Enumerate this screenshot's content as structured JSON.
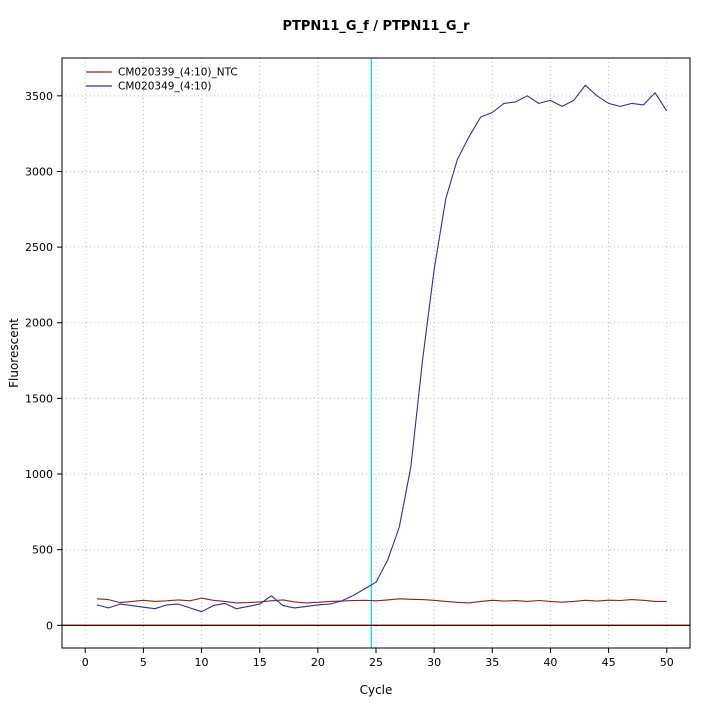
{
  "chart_data": {
    "type": "line",
    "title": "PTPN11_G_f / PTPN11_G_r",
    "xlabel": "Cycle",
    "ylabel": "Fluorescent",
    "x": [
      1,
      2,
      3,
      4,
      5,
      6,
      7,
      8,
      9,
      10,
      11,
      12,
      13,
      14,
      15,
      16,
      17,
      18,
      19,
      20,
      21,
      22,
      23,
      24,
      25,
      26,
      27,
      28,
      29,
      30,
      31,
      32,
      33,
      34,
      35,
      36,
      37,
      38,
      39,
      40,
      41,
      42,
      43,
      44,
      45,
      46,
      47,
      48,
      49,
      50
    ],
    "series": [
      {
        "name": "CM020339_(4:10)_NTC",
        "color": "#8b2323",
        "values": [
          175,
          170,
          150,
          158,
          165,
          158,
          162,
          168,
          162,
          180,
          165,
          158,
          148,
          150,
          155,
          162,
          168,
          155,
          148,
          152,
          158,
          160,
          163,
          165,
          162,
          168,
          175,
          172,
          170,
          165,
          158,
          152,
          148,
          158,
          165,
          160,
          163,
          158,
          164,
          158,
          153,
          158,
          165,
          160,
          166,
          164,
          170,
          165,
          158,
          158
        ]
      },
      {
        "name": "CM020349_(4:10)",
        "color": "#2e2e9e",
        "values": [
          135,
          115,
          140,
          130,
          120,
          110,
          135,
          140,
          115,
          90,
          130,
          145,
          110,
          125,
          140,
          195,
          130,
          115,
          125,
          135,
          140,
          160,
          195,
          240,
          285,
          430,
          650,
          1050,
          1750,
          2350,
          2820,
          3080,
          3230,
          3360,
          3390,
          3450,
          3460,
          3500,
          3450,
          3470,
          3430,
          3470,
          3570,
          3500,
          3450,
          3430,
          3450,
          3440,
          3520,
          3400
        ]
      }
    ],
    "x_ticks": [
      0,
      5,
      10,
      15,
      20,
      25,
      30,
      35,
      40,
      45,
      50
    ],
    "y_ticks": [
      0,
      500,
      1000,
      1500,
      2000,
      2500,
      3000,
      3500
    ],
    "xlim": [
      0,
      50
    ],
    "ylim": [
      0,
      3600
    ],
    "grid": "dotted",
    "legend_position": "top-left",
    "threshold_line": {
      "x": 24.6,
      "color": "#00e5ee"
    },
    "baseline": {
      "y": 0,
      "color": "#550000"
    },
    "grid_color": "#b8b8b8",
    "box_color": "#000000"
  }
}
